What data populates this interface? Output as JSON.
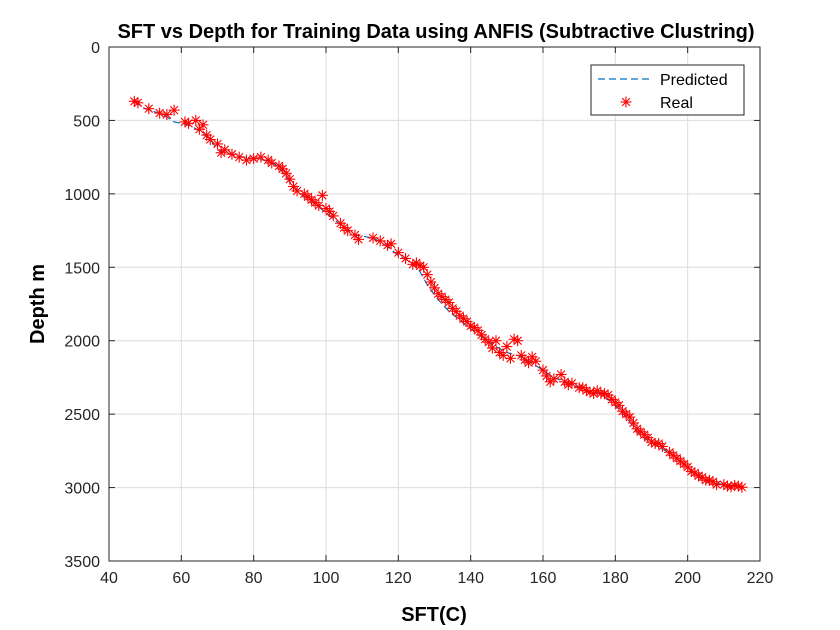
{
  "chart_data": {
    "type": "scatter",
    "title": "SFT vs Depth for Training Data using ANFIS (Subtractive Clustring)",
    "xlabel": "SFT(C)",
    "ylabel": "Depth m",
    "xlim": [
      40,
      220
    ],
    "ylim": [
      0,
      3500
    ],
    "y_reversed": true,
    "grid": true,
    "legend_position": "top-right",
    "xticks": [
      "40",
      "60",
      "80",
      "100",
      "120",
      "140",
      "160",
      "180",
      "200",
      "220"
    ],
    "yticks": [
      "0",
      "500",
      "1000",
      "1500",
      "2000",
      "2500",
      "3000",
      "3500"
    ],
    "colors": {
      "predicted": "#0072BD",
      "real": "#FF0000"
    },
    "series": [
      {
        "name": "Predicted",
        "style": "dashed-line",
        "x": [
          47,
          50,
          55,
          58,
          62,
          65,
          68,
          70,
          75,
          80,
          83,
          86,
          88,
          90,
          93,
          96,
          100,
          104,
          108,
          113,
          116,
          120,
          124,
          126,
          128,
          131,
          134,
          137,
          140,
          144,
          147,
          150,
          153,
          156,
          160,
          163,
          167,
          172,
          176,
          180,
          183,
          186,
          189,
          192,
          196,
          200,
          203,
          206,
          210,
          215
        ],
        "y": [
          370,
          420,
          460,
          510,
          530,
          570,
          630,
          700,
          740,
          760,
          770,
          800,
          850,
          920,
          1000,
          1050,
          1130,
          1210,
          1280,
          1300,
          1340,
          1420,
          1470,
          1530,
          1620,
          1720,
          1800,
          1860,
          1920,
          1990,
          2040,
          2080,
          2100,
          2140,
          2200,
          2250,
          2290,
          2340,
          2360,
          2440,
          2520,
          2620,
          2680,
          2720,
          2780,
          2860,
          2930,
          2960,
          2980,
          2995
        ]
      },
      {
        "name": "Real",
        "style": "asterisk-markers",
        "x": [
          47,
          48,
          51,
          54,
          56,
          58,
          61,
          62,
          64,
          65,
          66,
          67,
          68,
          70,
          71,
          72,
          74,
          76,
          78,
          80,
          82,
          84,
          85,
          87,
          88,
          89,
          90,
          91,
          92,
          94,
          95,
          96,
          97,
          98,
          99,
          100,
          101,
          102,
          104,
          105,
          106,
          108,
          109,
          113,
          115,
          117,
          118,
          120,
          122,
          124,
          125,
          126,
          127,
          128,
          129,
          130,
          131,
          132,
          133,
          134,
          135,
          136,
          137,
          138,
          139,
          140,
          141,
          142,
          143,
          144,
          145,
          146,
          147,
          148,
          149,
          150,
          151,
          152,
          153,
          154,
          155,
          156,
          157,
          158,
          160,
          161,
          162,
          163,
          165,
          166,
          167,
          168,
          170,
          171,
          172,
          173,
          174,
          175,
          176,
          177,
          178,
          179,
          180,
          181,
          182,
          183,
          184,
          185,
          186,
          187,
          188,
          189,
          190,
          191,
          192,
          193,
          195,
          196,
          197,
          198,
          199,
          200,
          201,
          202,
          203,
          204,
          205,
          206,
          207,
          208,
          210,
          211,
          212,
          213,
          214,
          215
        ],
        "y": [
          370,
          380,
          420,
          450,
          460,
          430,
          510,
          520,
          500,
          560,
          530,
          600,
          630,
          660,
          720,
          700,
          730,
          750,
          770,
          760,
          750,
          770,
          790,
          810,
          830,
          860,
          900,
          950,
          980,
          1000,
          1020,
          1040,
          1060,
          1080,
          1010,
          1100,
          1120,
          1150,
          1200,
          1230,
          1250,
          1280,
          1310,
          1300,
          1320,
          1350,
          1340,
          1400,
          1440,
          1480,
          1470,
          1490,
          1500,
          1550,
          1600,
          1640,
          1680,
          1700,
          1720,
          1740,
          1780,
          1800,
          1830,
          1850,
          1870,
          1900,
          1910,
          1930,
          1960,
          1990,
          2010,
          2050,
          2000,
          2080,
          2100,
          2040,
          2120,
          1990,
          2000,
          2100,
          2130,
          2150,
          2110,
          2140,
          2200,
          2240,
          2280,
          2260,
          2230,
          2280,
          2300,
          2290,
          2320,
          2320,
          2340,
          2350,
          2360,
          2340,
          2360,
          2360,
          2370,
          2400,
          2420,
          2440,
          2480,
          2500,
          2520,
          2560,
          2600,
          2620,
          2640,
          2660,
          2690,
          2700,
          2700,
          2720,
          2760,
          2780,
          2800,
          2820,
          2840,
          2860,
          2890,
          2900,
          2920,
          2930,
          2950,
          2950,
          2960,
          2980,
          2980,
          2990,
          2995,
          2985,
          2990,
          2998
        ]
      }
    ]
  }
}
